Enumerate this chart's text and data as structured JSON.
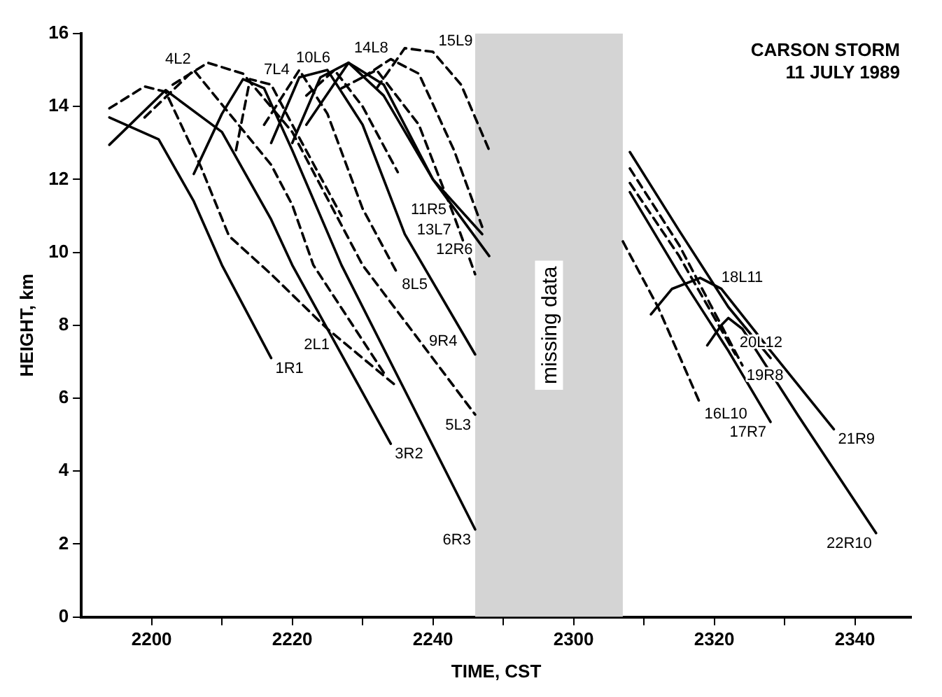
{
  "chart_data": {
    "type": "line",
    "title": "CARSON STORM",
    "subtitle": "11 JULY 1989",
    "xlabel": "TIME, CST",
    "ylabel": "HEIGHT, km",
    "xlim": [
      "1989-07-11T21:50",
      "1989-07-11T23:48"
    ],
    "ylim": [
      0,
      16
    ],
    "xticks": [
      {
        "value": "1989-07-11T22:00",
        "label": "2200"
      },
      {
        "value": "1989-07-11T22:10",
        "label": null
      },
      {
        "value": "1989-07-11T22:20",
        "label": "2220"
      },
      {
        "value": "1989-07-11T22:30",
        "label": null
      },
      {
        "value": "1989-07-11T22:40",
        "label": "2240"
      },
      {
        "value": "1989-07-11T22:50",
        "label": null
      },
      {
        "value": "1989-07-11T23:00",
        "label": "2300"
      },
      {
        "value": "1989-07-11T23:10",
        "label": null
      },
      {
        "value": "1989-07-11T23:20",
        "label": "2320"
      },
      {
        "value": "1989-07-11T23:30",
        "label": null
      },
      {
        "value": "1989-07-11T23:40",
        "label": "2340"
      }
    ],
    "yticks": [
      0,
      2,
      4,
      6,
      8,
      10,
      12,
      14,
      16
    ],
    "bands": [
      {
        "axis": "x",
        "from": "1989-07-11T22:46",
        "to": "1989-07-11T23:07",
        "label": "missing data",
        "color": "#d4d4d4"
      }
    ],
    "series": [
      {
        "name": "1R1",
        "color": "#000000",
        "line_style": "solid",
        "x": [
          "1989-07-11T21:54",
          "1989-07-11T22:01",
          "1989-07-11T22:06",
          "1989-07-11T22:10",
          "1989-07-11T22:17"
        ],
        "values": [
          13.7,
          13.1,
          11.4,
          9.65,
          7.1
        ]
      },
      {
        "name": "2L1",
        "color": "#000000",
        "line_style": "dashed",
        "x": [
          "1989-07-11T21:54",
          "1989-07-11T21:59",
          "1989-07-11T22:02",
          "1989-07-11T22:07",
          "1989-07-11T22:11",
          "1989-07-11T22:17",
          "1989-07-11T22:25",
          "1989-07-11T22:35"
        ],
        "values": [
          13.95,
          14.55,
          14.4,
          12.35,
          10.45,
          9.4,
          7.9,
          6.3
        ]
      },
      {
        "name": "3R2",
        "color": "#000000",
        "line_style": "solid",
        "x": [
          "1989-07-11T21:54",
          "1989-07-11T22:02",
          "1989-07-11T22:10",
          "1989-07-11T22:17",
          "1989-07-11T22:20",
          "1989-07-11T22:34"
        ],
        "values": [
          12.95,
          14.45,
          13.3,
          10.9,
          9.65,
          4.75
        ]
      },
      {
        "name": "4L2",
        "color": "#000000",
        "line_style": "dashed",
        "x": [
          "1989-07-11T21:59",
          "1989-07-11T22:06",
          "1989-07-11T22:17",
          "1989-07-11T22:20",
          "1989-07-11T22:23",
          "1989-07-11T22:33"
        ],
        "values": [
          13.7,
          15,
          12.4,
          11.3,
          9.65,
          6.7
        ]
      },
      {
        "name": "5L3",
        "color": "#000000",
        "line_style": "dashed",
        "x": [
          "1989-07-11T22:03",
          "1989-07-11T22:08",
          "1989-07-11T22:13",
          "1989-07-11T22:20",
          "1989-07-11T22:30",
          "1989-07-11T22:46"
        ],
        "values": [
          14.6,
          15.2,
          14.9,
          13.3,
          9.65,
          5.55
        ]
      },
      {
        "name": "6R3",
        "color": "#000000",
        "line_style": "solid",
        "x": [
          "1989-07-11T22:06",
          "1989-07-11T22:10",
          "1989-07-11T22:13",
          "1989-07-11T22:16",
          "1989-07-11T22:20",
          "1989-07-11T22:27",
          "1989-07-11T22:46"
        ],
        "values": [
          12.15,
          13.8,
          14.75,
          14.5,
          12.8,
          9.65,
          2.4
        ]
      },
      {
        "name": "7L4",
        "color": "#000000",
        "line_style": "dashed",
        "x": [
          "1989-07-11T22:12",
          "1989-07-11T22:14",
          "1989-07-11T22:17",
          "1989-07-11T22:20",
          "1989-07-11T22:27"
        ],
        "values": [
          12.8,
          14.75,
          14.6,
          13.5,
          11
        ]
      },
      {
        "name": "8L5",
        "color": "#000000",
        "line_style": "dashed",
        "x": [
          "1989-07-11T22:16",
          "1989-07-11T22:21",
          "1989-07-11T22:25",
          "1989-07-11T22:30",
          "1989-07-11T22:35"
        ],
        "values": [
          13.5,
          15,
          13.8,
          11.2,
          9.4
        ]
      },
      {
        "name": "9R4",
        "color": "#000000",
        "line_style": "solid",
        "x": [
          "1989-07-11T22:17",
          "1989-07-11T22:21",
          "1989-07-11T22:25",
          "1989-07-11T22:30",
          "1989-07-11T22:36",
          "1989-07-11T22:46"
        ],
        "values": [
          13,
          14.8,
          15,
          13.5,
          10.5,
          7.2
        ]
      },
      {
        "name": "10L6",
        "color": "#000000",
        "line_style": "dashed",
        "x": [
          "1989-07-11T22:22",
          "1989-07-11T22:26",
          "1989-07-11T22:30",
          "1989-07-11T22:35"
        ],
        "values": [
          14.3,
          15,
          14,
          12.2
        ]
      },
      {
        "name": "11R5",
        "color": "#000000",
        "line_style": "solid",
        "x": [
          "1989-07-11T22:20",
          "1989-07-11T22:24",
          "1989-07-11T22:28",
          "1989-07-11T22:33",
          "1989-07-11T22:40",
          "1989-07-11T22:47"
        ],
        "values": [
          13,
          14.8,
          15.2,
          14.3,
          12,
          10.5
        ]
      },
      {
        "name": "12R6",
        "color": "#000000",
        "line_style": "solid",
        "x": [
          "1989-07-11T22:22",
          "1989-07-11T22:28",
          "1989-07-11T22:33",
          "1989-07-11T22:40",
          "1989-07-11T22:48"
        ],
        "values": [
          13.5,
          15.2,
          14.6,
          12,
          9.9
        ]
      },
      {
        "name": "13L7",
        "color": "#000000",
        "line_style": "dashed",
        "x": [
          "1989-07-11T22:27",
          "1989-07-11T22:32",
          "1989-07-11T22:38",
          "1989-07-11T22:43",
          "1989-07-11T22:46"
        ],
        "values": [
          14.5,
          15,
          13.5,
          11,
          9.4
        ]
      },
      {
        "name": "14L8",
        "color": "#000000",
        "line_style": "dashed",
        "x": [
          "1989-07-11T22:30",
          "1989-07-11T22:34",
          "1989-07-11T22:38",
          "1989-07-11T22:43",
          "1989-07-11T22:47"
        ],
        "values": [
          14.8,
          15.3,
          14.9,
          12.8,
          10.7
        ]
      },
      {
        "name": "15L9",
        "color": "#000000",
        "line_style": "dashed",
        "x": [
          "1989-07-11T22:32",
          "1989-07-11T22:36",
          "1989-07-11T22:40",
          "1989-07-11T22:44",
          "1989-07-11T22:48"
        ],
        "values": [
          14.5,
          15.6,
          15.5,
          14.6,
          12.8
        ]
      },
      {
        "name": "16L10",
        "color": "#000000",
        "line_style": "dashed",
        "x": [
          "1989-07-11T23:07",
          "1989-07-11T23:12",
          "1989-07-11T23:18"
        ],
        "values": [
          10.3,
          8.5,
          5.85
        ]
      },
      {
        "name": "17R7",
        "color": "#000000",
        "line_style": "solid",
        "x": [
          "1989-07-11T23:08",
          "1989-07-11T23:15",
          "1989-07-11T23:22",
          "1989-07-11T23:28"
        ],
        "values": [
          11.65,
          9.4,
          7.3,
          5.35
        ]
      },
      {
        "name": "18L11",
        "color": "#000000",
        "line_style": "solid",
        "x": [
          "1989-07-11T23:08",
          "1989-07-11T23:15",
          "1989-07-11T23:22",
          "1989-07-11T23:28"
        ],
        "values": [
          12.75,
          10.6,
          8.5,
          7.1
        ]
      },
      {
        "name": "19R8",
        "color": "#000000",
        "line_style": "dashed",
        "x": [
          "1989-07-11T23:08",
          "1989-07-11T23:15",
          "1989-07-11T23:24"
        ],
        "values": [
          12.3,
          10.2,
          6.9
        ]
      },
      {
        "name": "20L12",
        "color": "#000000",
        "line_style": "dashed",
        "x": [
          "1989-07-11T23:08",
          "1989-07-11T23:15",
          "1989-07-11T23:23"
        ],
        "values": [
          11.9,
          9.9,
          7.2
        ]
      },
      {
        "name": "21R9",
        "color": "#000000",
        "line_style": "solid",
        "x": [
          "1989-07-11T23:11",
          "1989-07-11T23:14",
          "1989-07-11T23:18",
          "1989-07-11T23:21",
          "1989-07-11T23:28",
          "1989-07-11T23:37"
        ],
        "values": [
          8.3,
          9,
          9.3,
          9,
          7.3,
          5.15
        ]
      },
      {
        "name": "22R10",
        "color": "#000000",
        "line_style": "solid",
        "x": [
          "1989-07-11T23:19",
          "1989-07-11T23:21",
          "1989-07-11T23:22",
          "1989-07-11T23:24",
          "1989-07-11T23:32",
          "1989-07-11T23:43"
        ],
        "values": [
          7.45,
          8,
          8.2,
          7.9,
          5.5,
          2.3
        ]
      }
    ]
  }
}
